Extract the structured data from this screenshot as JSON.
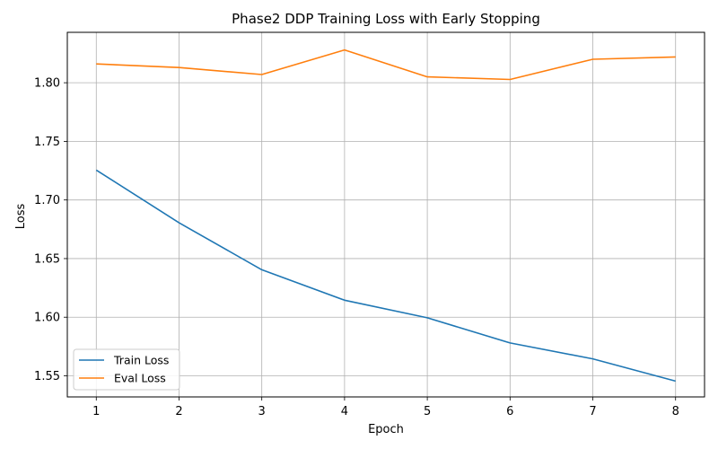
{
  "chart_data": {
    "type": "line",
    "title": "Phase2 DDP Training Loss with Early Stopping",
    "xlabel": "Epoch",
    "ylabel": "Loss",
    "x": [
      1,
      2,
      3,
      4,
      5,
      6,
      7,
      8
    ],
    "xlim": [
      0.65,
      8.35
    ],
    "ylim": [
      1.532,
      1.843
    ],
    "xticks": [
      1,
      2,
      3,
      4,
      5,
      6,
      7,
      8
    ],
    "yticks": [
      1.55,
      1.6,
      1.65,
      1.7,
      1.75,
      1.8
    ],
    "ytick_labels": [
      "1.55",
      "1.60",
      "1.65",
      "1.70",
      "1.75",
      "1.80"
    ],
    "grid": true,
    "legend_position": "lower-left",
    "series": [
      {
        "name": "Train Loss",
        "color": "#1f77b4",
        "values": [
          1.7255,
          1.6805,
          1.6405,
          1.6145,
          1.5995,
          1.578,
          1.5645,
          1.5455
        ]
      },
      {
        "name": "Eval Loss",
        "color": "#ff7f0e",
        "values": [
          1.816,
          1.813,
          1.807,
          1.828,
          1.805,
          1.8028,
          1.82,
          1.822
        ]
      }
    ]
  }
}
